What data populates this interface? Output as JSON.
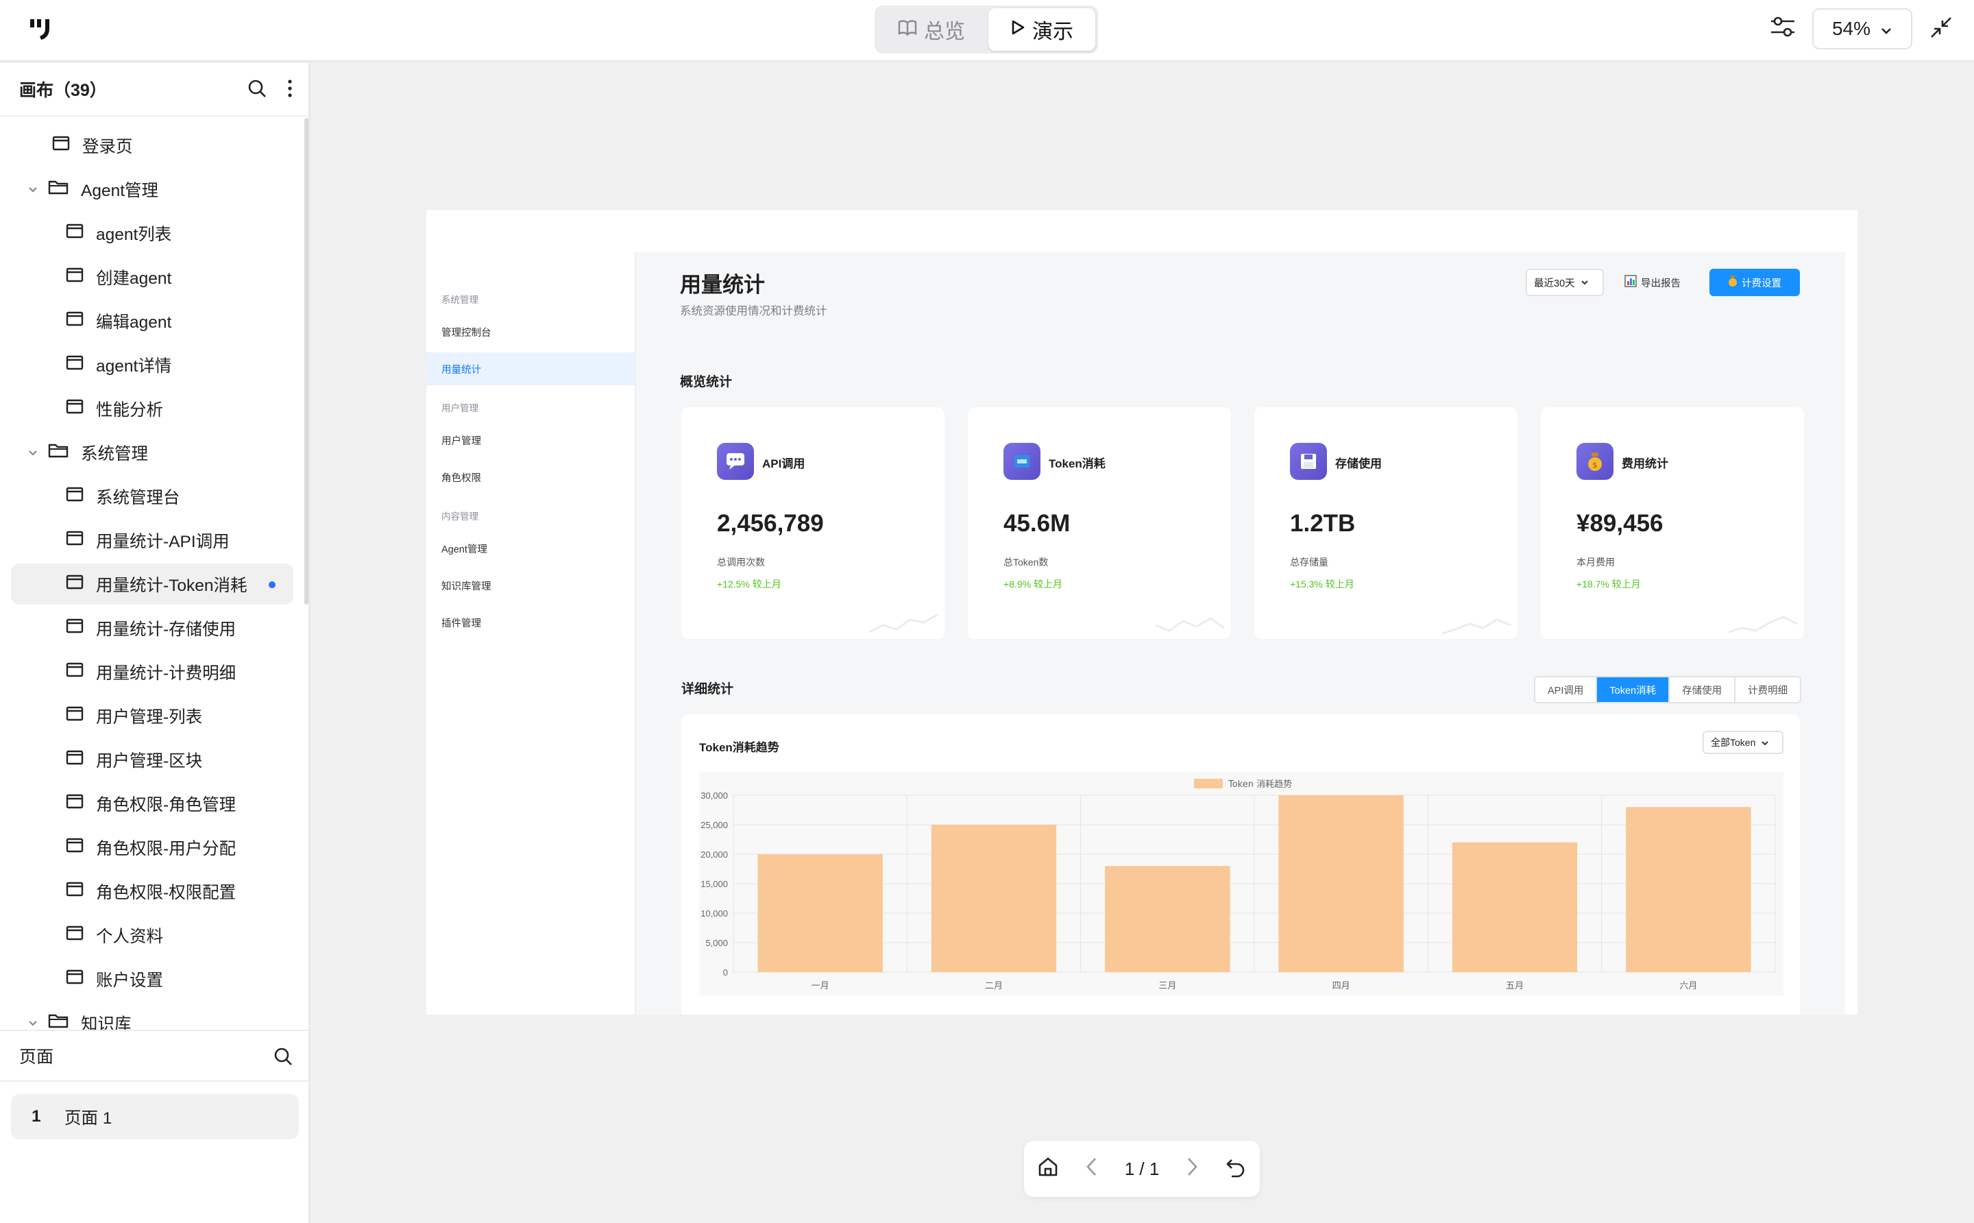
{
  "toolbar": {
    "overview_label": "总览",
    "present_label": "演示",
    "zoom": "54%"
  },
  "canvas_panel": {
    "title": "画布（39）"
  },
  "tree": [
    {
      "label": "登录页",
      "type": "page",
      "level": 1
    },
    {
      "label": "Agent管理",
      "type": "folder",
      "level": 0,
      "expanded": true
    },
    {
      "label": "agent列表",
      "type": "page",
      "level": 2
    },
    {
      "label": "创建agent",
      "type": "page",
      "level": 2
    },
    {
      "label": "编辑agent",
      "type": "page",
      "level": 2
    },
    {
      "label": "agent详情",
      "type": "page",
      "level": 2
    },
    {
      "label": "性能分析",
      "type": "page",
      "level": 2
    },
    {
      "label": "系统管理",
      "type": "folder",
      "level": 0,
      "expanded": true
    },
    {
      "label": "系统管理台",
      "type": "page",
      "level": 2
    },
    {
      "label": "用量统计-API调用",
      "type": "page",
      "level": 2
    },
    {
      "label": "用量统计-Token消耗",
      "type": "page",
      "level": 2,
      "selected": true
    },
    {
      "label": "用量统计-存储使用",
      "type": "page",
      "level": 2
    },
    {
      "label": "用量统计-计费明细",
      "type": "page",
      "level": 2
    },
    {
      "label": "用户管理-列表",
      "type": "page",
      "level": 2
    },
    {
      "label": "用户管理-区块",
      "type": "page",
      "level": 2
    },
    {
      "label": "角色权限-角色管理",
      "type": "page",
      "level": 2
    },
    {
      "label": "角色权限-用户分配",
      "type": "page",
      "level": 2
    },
    {
      "label": "角色权限-权限配置",
      "type": "page",
      "level": 2
    },
    {
      "label": "个人资料",
      "type": "page",
      "level": 2
    },
    {
      "label": "账户设置",
      "type": "page",
      "level": 2
    },
    {
      "label": "知识库",
      "type": "folder",
      "level": 0,
      "expanded": true
    }
  ],
  "pages_panel": {
    "title": "页面",
    "items": [
      {
        "index": "1",
        "label": "页面 1"
      }
    ]
  },
  "design": {
    "sidebar": [
      {
        "label": "系统管理",
        "kind": "group"
      },
      {
        "label": "管理控制台",
        "kind": "item"
      },
      {
        "label": "用量统计",
        "kind": "item",
        "active": true
      },
      {
        "label": "用户管理",
        "kind": "group"
      },
      {
        "label": "用户管理",
        "kind": "item"
      },
      {
        "label": "角色权限",
        "kind": "item"
      },
      {
        "label": "内容管理",
        "kind": "group"
      },
      {
        "label": "Agent管理",
        "kind": "item"
      },
      {
        "label": "知识库管理",
        "kind": "item"
      },
      {
        "label": "插件管理",
        "kind": "item"
      }
    ],
    "title": "用量统计",
    "subtitle": "系统资源使用情况和计费统计",
    "range_select": "最近30天",
    "export_label": "导出报告",
    "billing_label": "计费设置",
    "overview_title": "概览统计",
    "cards": [
      {
        "label": "API调用",
        "value": "2,456,789",
        "desc": "总调用次数",
        "trend": "+12.5% 较上月",
        "icon": "chat-icon"
      },
      {
        "label": "Token消耗",
        "value": "45.6M",
        "desc": "总Token数",
        "trend": "+8.9% 较上月",
        "icon": "token-icon"
      },
      {
        "label": "存储使用",
        "value": "1.2TB",
        "desc": "总存储量",
        "trend": "+15.3% 较上月",
        "icon": "floppy-icon"
      },
      {
        "label": "费用统计",
        "value": "¥89,456",
        "desc": "本月费用",
        "trend": "+18.7% 较上月",
        "icon": "money-bag-icon"
      }
    ],
    "detail_title": "详细统计",
    "tabs": [
      {
        "label": "API调用"
      },
      {
        "label": "Token消耗",
        "active": true
      },
      {
        "label": "存储使用"
      },
      {
        "label": "计费明细"
      }
    ],
    "chart_card_title": "Token消耗趋势",
    "chart_select": "全部Token"
  },
  "chart_data": {
    "type": "bar",
    "categories": [
      "一月",
      "二月",
      "三月",
      "四月",
      "五月",
      "六月"
    ],
    "series": [
      {
        "name": "Token 消耗趋势",
        "values": [
          20000,
          25000,
          18000,
          30000,
          22000,
          28000
        ]
      }
    ],
    "ylim": [
      0,
      30000
    ],
    "yticks": [
      "30,000",
      "25,000",
      "20,000",
      "15,000",
      "10,000",
      "5,000",
      "0"
    ],
    "grid": true,
    "legend": "top-center",
    "color": "#f9c896"
  },
  "bottom_nav": {
    "page_indicator": "1 / 1"
  }
}
